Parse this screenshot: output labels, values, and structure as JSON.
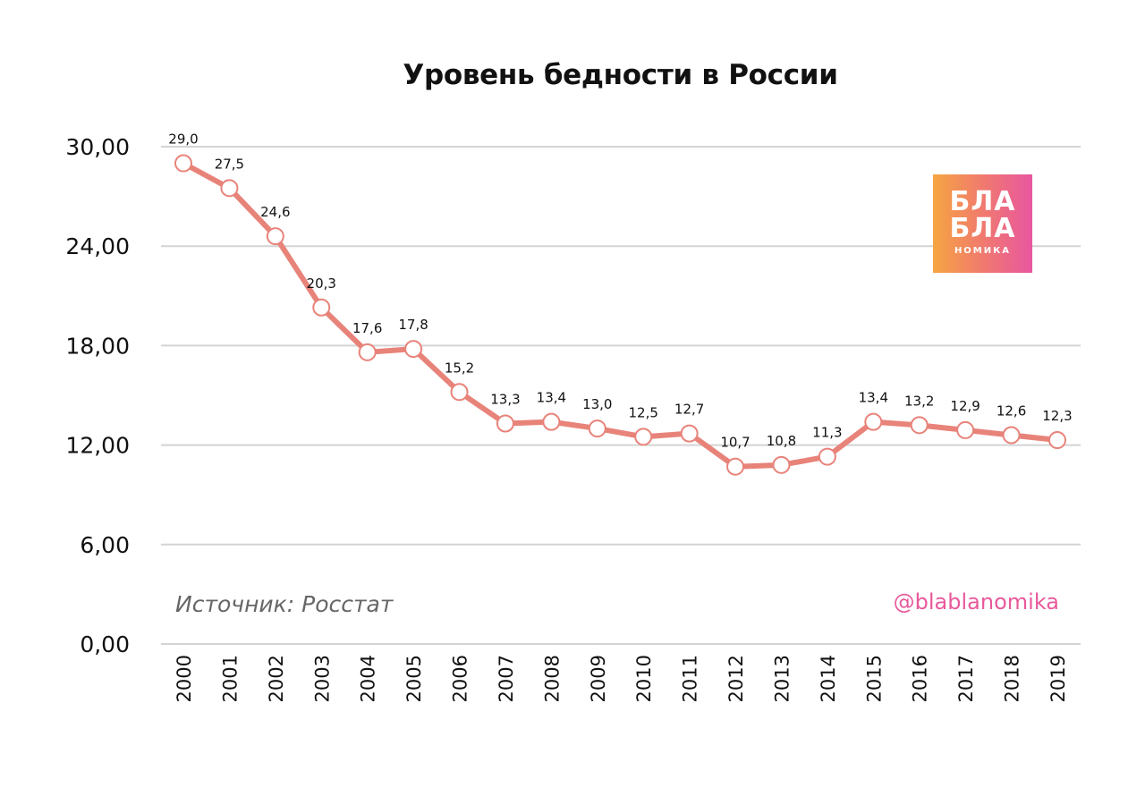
{
  "chart_data": {
    "type": "line",
    "title": "Уровень бедности в России",
    "xlabel": "",
    "ylabel": "",
    "categories": [
      "2000",
      "2001",
      "2002",
      "2003",
      "2004",
      "2005",
      "2006",
      "2007",
      "2008",
      "2009",
      "2010",
      "2011",
      "2012",
      "2013",
      "2014",
      "2015",
      "2016",
      "2017",
      "2018",
      "2019"
    ],
    "series": [
      {
        "values": [
          29.0,
          27.5,
          24.6,
          20.3,
          17.6,
          17.8,
          15.2,
          13.3,
          13.4,
          13.0,
          12.5,
          12.7,
          10.7,
          10.8,
          11.3,
          13.4,
          13.2,
          12.9,
          12.6,
          12.3
        ]
      }
    ],
    "data_labels": [
      "29,0",
      "27,5",
      "24,6",
      "20,3",
      "17,6",
      "17,8",
      "15,2",
      "13,3",
      "13,4",
      "13,0",
      "12,5",
      "12,7",
      "10,7",
      "10,8",
      "11,3",
      "13,4",
      "13,2",
      "12,9",
      "12,6",
      "12,3"
    ],
    "y_ticks": [
      0,
      6,
      12,
      18,
      24,
      30
    ],
    "y_tick_labels": [
      "0,00",
      "6,00",
      "12,00",
      "18,00",
      "24,00",
      "30,00"
    ],
    "ylim": [
      0,
      30
    ],
    "grid": true,
    "line_color": "#e8837a"
  },
  "source_note": "Источник: Росстат",
  "handle": "@blablanomika",
  "logo": {
    "line1": "БЛА",
    "line2": "БЛА",
    "line3": "НОМИКА"
  }
}
